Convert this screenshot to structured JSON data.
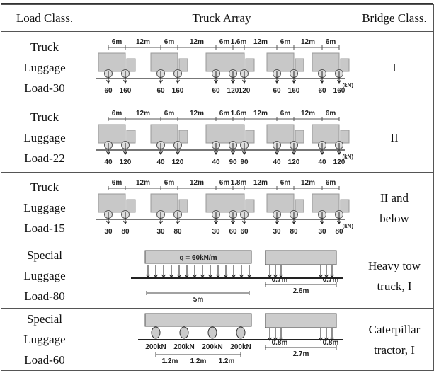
{
  "table": {
    "header": [
      "Load Class.",
      "Truck Array",
      "Bridge Class."
    ],
    "rows": [
      {
        "load_class": [
          "Truck",
          "Luggage",
          "Load-30"
        ],
        "bridge_class": [
          "I"
        ],
        "diagram": {
          "spacings": [
            "6m",
            "12m",
            "6m",
            "12m",
            "6m",
            "1.6m",
            "12m",
            "6m",
            "12m",
            "6m"
          ],
          "loads": [
            60,
            160,
            60,
            160,
            60,
            120,
            120,
            60,
            160,
            60,
            160
          ],
          "unit": "(kN)"
        }
      },
      {
        "load_class": [
          "Truck",
          "Luggage",
          "Load-22"
        ],
        "bridge_class": [
          "II"
        ],
        "diagram": {
          "spacings": [
            "6m",
            "12m",
            "6m",
            "12m",
            "6m",
            "1.6m",
            "12m",
            "6m",
            "12m",
            "6m"
          ],
          "loads": [
            40,
            120,
            40,
            120,
            40,
            90,
            90,
            40,
            120,
            40,
            120
          ],
          "unit": "(kN)"
        }
      },
      {
        "load_class": [
          "Truck",
          "Luggage",
          "Load-15"
        ],
        "bridge_class": [
          "II and",
          "below"
        ],
        "diagram": {
          "spacings": [
            "6m",
            "12m",
            "6m",
            "12m",
            "6m",
            "1.8m",
            "12m",
            "6m",
            "12m",
            "6m"
          ],
          "loads": [
            30,
            80,
            30,
            80,
            30,
            60,
            60,
            30,
            80,
            30,
            80
          ],
          "unit": "(kN)"
        }
      },
      {
        "load_class": [
          "Special",
          "Luggage",
          "Load-80"
        ],
        "bridge_class": [
          "Heavy tow",
          "truck, I"
        ],
        "diagram": {
          "q_label": "q = 60kN/m",
          "length": "5m",
          "gaps": [
            "0.7m",
            "0.7m"
          ],
          "total": "2.6m"
        }
      },
      {
        "load_class": [
          "Special",
          "Luggage",
          "Load-60"
        ],
        "bridge_class": [
          "Caterpillar",
          "tractor, I"
        ],
        "diagram": {
          "wheel_loads": [
            "200kN",
            "200kN",
            "200kN",
            "200kN"
          ],
          "wheel_spacings": [
            "1.2m",
            "1.2m",
            "1.2m"
          ],
          "gaps": [
            "0.8m",
            "0.8m"
          ],
          "total": "2.7m"
        }
      }
    ]
  }
}
